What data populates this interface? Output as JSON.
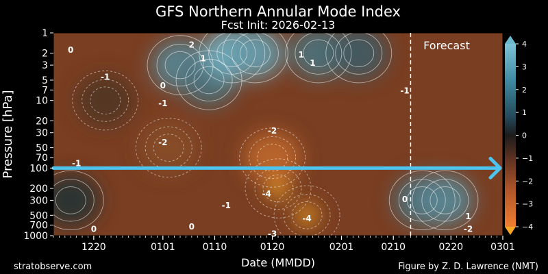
{
  "chart_data": {
    "type": "heatmap",
    "title": "GFS Northern Annular Mode Index",
    "subtitle": "Fcst Init: 2026-02-13",
    "xlabel": "Date (MMDD)",
    "ylabel": "Pressure [hPa]",
    "x_ticks": [
      "1220",
      "0101",
      "0110",
      "0120",
      "0201",
      "0210",
      "0220",
      "0301"
    ],
    "x_tick_dates": [
      "2025-12-20",
      "2026-01-01",
      "2026-01-10",
      "2026-01-20",
      "2026-02-01",
      "2026-02-10",
      "2026-02-20",
      "2026-03-01"
    ],
    "x_range": [
      "2025-12-13",
      "2026-03-01"
    ],
    "y_ticks": [
      1,
      2,
      3,
      5,
      7,
      10,
      20,
      30,
      50,
      70,
      100,
      200,
      300,
      500,
      700,
      1000
    ],
    "y_range": [
      1000,
      1
    ],
    "y_scale": "log",
    "colorbar": {
      "ticks": [
        4,
        3,
        2,
        1,
        0,
        -1,
        -2,
        -3,
        -4
      ],
      "range": [
        -4,
        4
      ],
      "high_color": "#7fc3d6",
      "mid_color": "#1c1c1c",
      "low_color": "#f07e30",
      "extend_high_color": "#6cb8cc",
      "extend_low_color": "#f5a623"
    },
    "forecast_start": "2026-02-13",
    "forecast_label": "Forecast",
    "reference_line": {
      "pressure": 100,
      "color": "#4ec3ee"
    },
    "grid": false,
    "regions": [
      {
        "date": "2025-12-22",
        "pressure": 10,
        "value": -1
      },
      {
        "date": "2026-01-04",
        "pressure": 3,
        "value": 2.5
      },
      {
        "date": "2026-01-09",
        "pressure": 5,
        "value": 2
      },
      {
        "date": "2026-01-13",
        "pressure": 2,
        "value": 3.5
      },
      {
        "date": "2026-01-17",
        "pressure": 2,
        "value": 3
      },
      {
        "date": "2026-01-28",
        "pressure": 2,
        "value": 2
      },
      {
        "date": "2026-02-04",
        "pressure": 2,
        "value": 1.5
      },
      {
        "date": "2026-01-21",
        "pressure": 200,
        "value": -4.5
      },
      {
        "date": "2026-01-26",
        "pressure": 500,
        "value": -4.2
      },
      {
        "date": "2026-01-20",
        "pressure": 70,
        "value": -3
      },
      {
        "date": "2026-01-02",
        "pressure": 50,
        "value": -2
      },
      {
        "date": "2025-12-16",
        "pressure": 300,
        "value": 0.5
      },
      {
        "date": "2026-02-15",
        "pressure": 300,
        "value": 2
      },
      {
        "date": "2026-02-19",
        "pressure": 300,
        "value": 2.5
      }
    ],
    "contour_labels": [
      {
        "text": "0",
        "date": "2025-12-16",
        "pressure": 1.8
      },
      {
        "text": "-1",
        "date": "2025-12-22",
        "pressure": 4.5
      },
      {
        "text": "2",
        "date": "2026-01-06",
        "pressure": 1.5
      },
      {
        "text": "0",
        "date": "2026-01-01",
        "pressure": 6
      },
      {
        "text": "1",
        "date": "2026-01-08",
        "pressure": 2.4
      },
      {
        "text": "-1",
        "date": "2026-01-01",
        "pressure": 11
      },
      {
        "text": "1",
        "date": "2026-01-25",
        "pressure": 2.1
      },
      {
        "text": "1",
        "date": "2026-01-27",
        "pressure": 2.8
      },
      {
        "text": "-2",
        "date": "2026-01-01",
        "pressure": 42
      },
      {
        "text": "-2",
        "date": "2026-01-20",
        "pressure": 28
      },
      {
        "text": "-1",
        "date": "2025-12-17",
        "pressure": 85
      },
      {
        "text": "-4",
        "date": "2026-01-19",
        "pressure": 240
      },
      {
        "text": "-1",
        "date": "2026-01-12",
        "pressure": 360
      },
      {
        "text": "-4",
        "date": "2026-01-26",
        "pressure": 560
      },
      {
        "text": "-3",
        "date": "2026-01-20",
        "pressure": 940
      },
      {
        "text": "0",
        "date": "2025-12-20",
        "pressure": 800
      },
      {
        "text": "0",
        "date": "2026-01-06",
        "pressure": 740
      },
      {
        "text": "-1",
        "date": "2026-02-12",
        "pressure": 7.2
      },
      {
        "text": "0",
        "date": "2026-02-12",
        "pressure": 290
      },
      {
        "text": "1",
        "date": "2026-02-23",
        "pressure": 520
      },
      {
        "text": "-2",
        "date": "2026-02-23",
        "pressure": 800
      }
    ]
  },
  "footer": {
    "left": "stratobserve.com",
    "right": "Figure by Z. D. Lawrence (NMT)"
  }
}
